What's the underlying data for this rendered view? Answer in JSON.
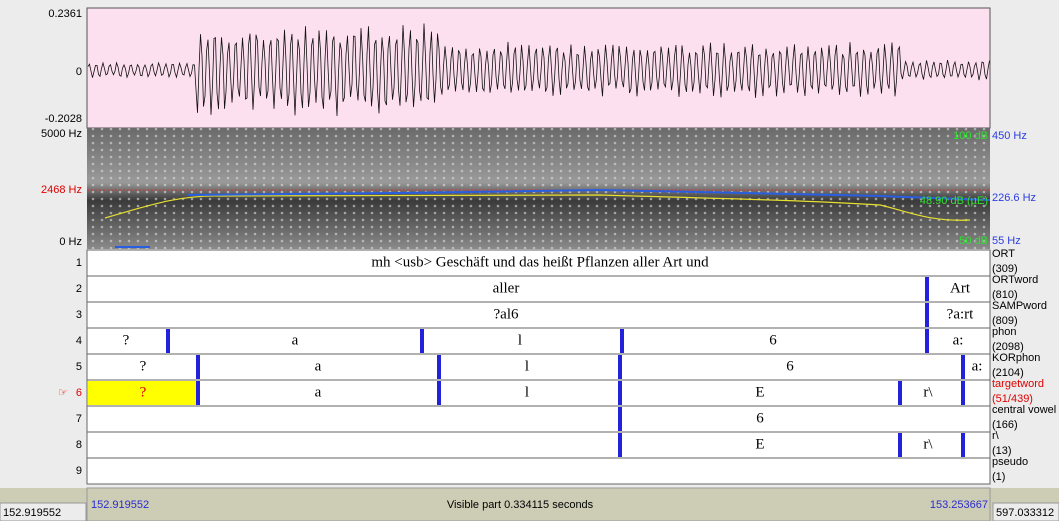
{
  "left_axis": {
    "wave_max": "0.2361",
    "wave_zero": "0",
    "wave_min": "-0.2028",
    "spec_max": "5000 Hz",
    "spec_cursor": "2468 Hz",
    "spec_min": "0 Hz"
  },
  "right_axis": {
    "pitch_max": "450 Hz",
    "pitch_cursor": "226.6 Hz",
    "pitch_min": "55 Hz",
    "intensity_max": "100 dB",
    "intensity_mid": "48.90 dB (µE)",
    "intensity_min": "50 dB"
  },
  "selected_marker": "☞",
  "tiers": [
    {
      "number": "1",
      "name": "ORT",
      "count": "(309)",
      "intervals": [
        "mh <usb> Geschäft und das heißt Pflanzen aller Art und"
      ]
    },
    {
      "number": "2",
      "name": "ORTword",
      "count": "(810)",
      "intervals": [
        "aller",
        "Art"
      ]
    },
    {
      "number": "3",
      "name": "SAMPword",
      "count": "(809)",
      "intervals": [
        "?al6",
        "?a:rt"
      ]
    },
    {
      "number": "4",
      "name": "phon",
      "count": "(2098)",
      "intervals": [
        "?",
        "a",
        "l",
        "6",
        "a:"
      ]
    },
    {
      "number": "5",
      "name": "KORphon",
      "count": "(2104)",
      "intervals": [
        "?",
        "a",
        "l",
        "6",
        "a:"
      ]
    },
    {
      "number": "6",
      "name": "targetword",
      "count": "(51/439)",
      "intervals": [
        "?",
        "a",
        "l",
        "E",
        "r\\"
      ]
    },
    {
      "number": "7",
      "name": "central vowel",
      "count": "(166)",
      "intervals": [
        "6"
      ]
    },
    {
      "number": "8",
      "name": "r\\",
      "count": "(13)",
      "intervals": [
        "E",
        "r\\"
      ]
    },
    {
      "number": "9",
      "name": "pseudo",
      "count": "(1)",
      "intervals": []
    }
  ],
  "footer": {
    "total_start": "152.919552",
    "visible_start": "152.919552",
    "visible_info": "Visible part 0.334115 seconds",
    "visible_end": "153.253667",
    "total_end": "597.033312"
  }
}
